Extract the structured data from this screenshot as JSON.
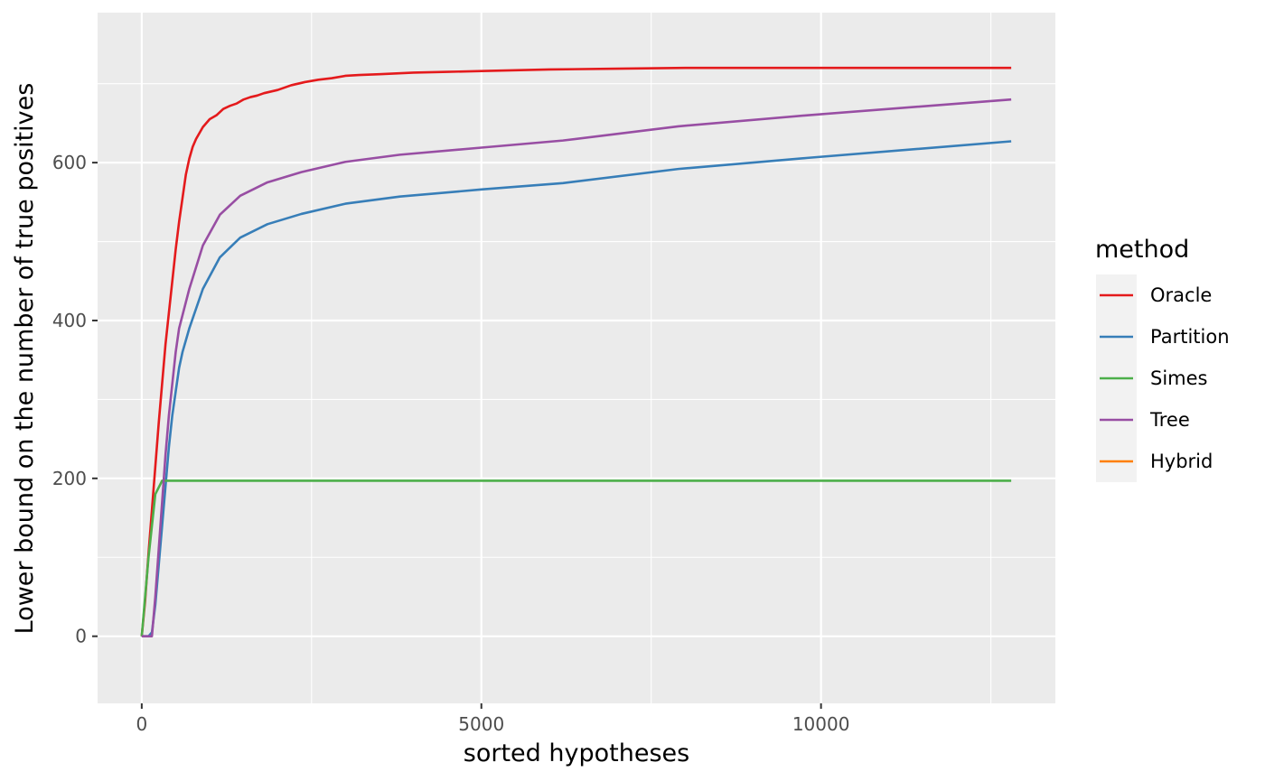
{
  "chart_data": {
    "type": "line",
    "title": "",
    "xlabel": "sorted hypotheses",
    "ylabel": "Lower bound on the number of true positives",
    "xlim": [
      -650,
      13450
    ],
    "ylim": [
      -85,
      790
    ],
    "x_major_ticks": [
      0,
      5000,
      10000
    ],
    "x_minor_ticks": [
      2500,
      7500,
      12500
    ],
    "y_major_ticks": [
      0,
      200,
      400,
      600
    ],
    "y_minor_ticks": [
      100,
      300,
      500,
      700
    ],
    "grid": true,
    "legend": {
      "title": "method",
      "position": "right"
    },
    "series": [
      {
        "name": "Oracle",
        "color": "#E41A1C",
        "x": [
          0,
          50,
          100,
          150,
          200,
          250,
          300,
          350,
          400,
          450,
          500,
          550,
          600,
          650,
          700,
          750,
          800,
          900,
          1000,
          1100,
          1200,
          1300,
          1400,
          1500,
          1600,
          1700,
          1800,
          1900,
          2000,
          2200,
          2400,
          2600,
          2800,
          3000,
          3200,
          3500,
          4000,
          4500,
          5000,
          6000,
          7000,
          8000,
          10000,
          12000,
          12800
        ],
        "y": [
          0,
          45,
          105,
          160,
          215,
          270,
          320,
          370,
          410,
          450,
          490,
          525,
          555,
          585,
          605,
          620,
          630,
          645,
          655,
          660,
          668,
          672,
          675,
          680,
          683,
          685,
          688,
          690,
          692,
          698,
          702,
          705,
          707,
          710,
          711,
          712,
          714,
          715,
          716,
          718,
          719,
          720,
          720,
          720,
          720
        ]
      },
      {
        "name": "Partition",
        "color": "#377EB8",
        "x": [
          0,
          100,
          150,
          200,
          250,
          300,
          350,
          400,
          450,
          500,
          550,
          600,
          700,
          900,
          1150,
          1450,
          1850,
          2350,
          3000,
          3800,
          5000,
          6200,
          7900,
          9800,
          12800
        ],
        "y": [
          0,
          0,
          5,
          40,
          90,
          140,
          190,
          240,
          280,
          310,
          340,
          360,
          390,
          440,
          480,
          505,
          522,
          535,
          548,
          557,
          566,
          574,
          592,
          606,
          627
        ]
      },
      {
        "name": "Simes",
        "color": "#4DAF4A",
        "x": [
          0,
          100,
          200,
          300,
          350,
          12800
        ],
        "y": [
          0,
          100,
          180,
          197,
          197,
          197
        ]
      },
      {
        "name": "Tree",
        "color": "#984EA3",
        "x": [
          0,
          150,
          200,
          250,
          300,
          350,
          400,
          450,
          500,
          550,
          700,
          900,
          1150,
          1450,
          1850,
          2350,
          3000,
          3800,
          5000,
          6200,
          7900,
          9800,
          12800
        ],
        "y": [
          0,
          0,
          50,
          110,
          170,
          230,
          280,
          320,
          360,
          390,
          440,
          495,
          534,
          558,
          575,
          588,
          601,
          610,
          619,
          628,
          646,
          660,
          680
        ]
      },
      {
        "name": "Hybrid",
        "color": "#FF7F00",
        "x": [],
        "y": []
      }
    ]
  }
}
